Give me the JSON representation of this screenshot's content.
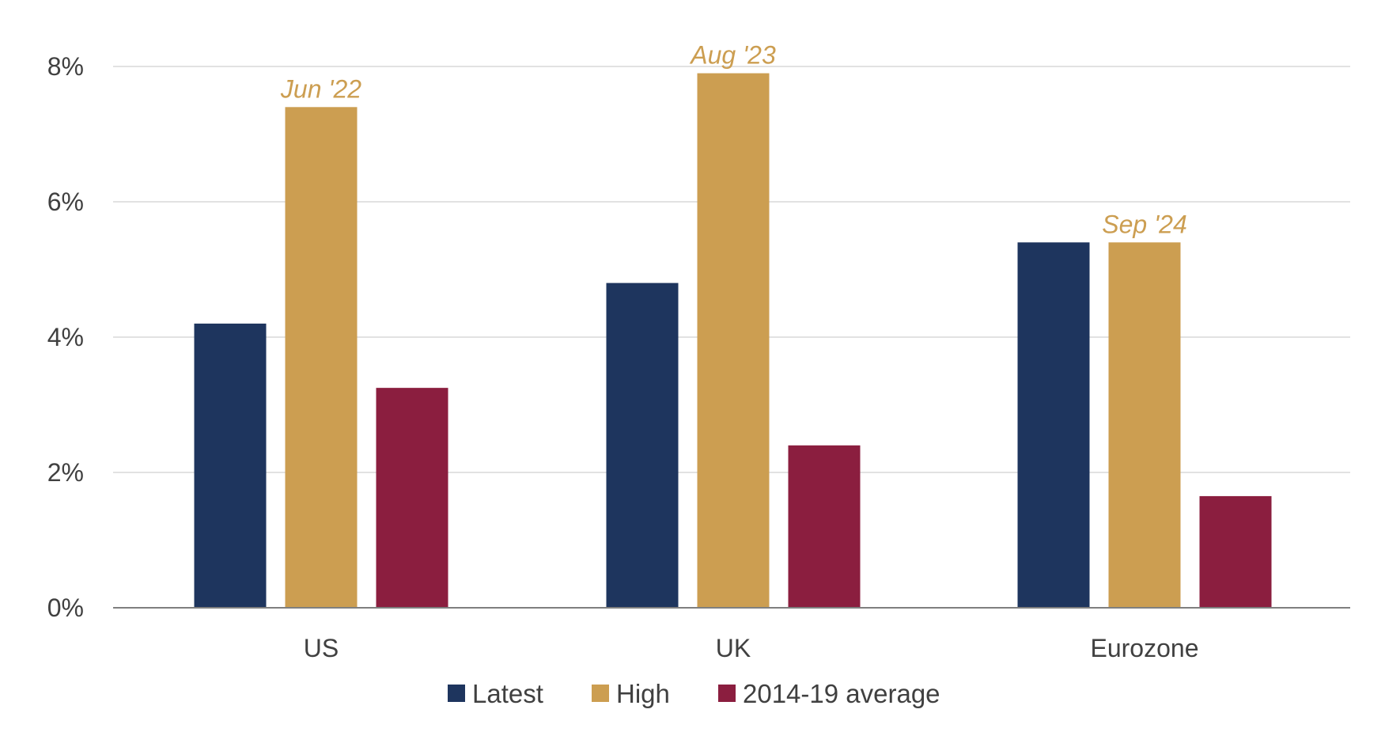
{
  "chart_data": {
    "type": "bar",
    "categories": [
      "US",
      "UK",
      "Eurozone"
    ],
    "series": [
      {
        "name": "Latest",
        "color": "#1e355e",
        "values": [
          4.2,
          4.8,
          5.4
        ]
      },
      {
        "name": "High",
        "color": "#cc9e51",
        "values": [
          7.4,
          7.9,
          5.4
        ]
      },
      {
        "name": "2014-19 average",
        "color": "#8b1e3f",
        "values": [
          3.25,
          2.4,
          1.65
        ]
      }
    ],
    "annotations": [
      {
        "category": "US",
        "series": "High",
        "text": "Jun '22"
      },
      {
        "category": "UK",
        "series": "High",
        "text": "Aug '23"
      },
      {
        "category": "Eurozone",
        "series": "High",
        "text": "Sep '24"
      }
    ],
    "yticks": [
      0,
      2,
      4,
      6,
      8
    ],
    "ytick_labels": [
      "0%",
      "2%",
      "4%",
      "6%",
      "8%"
    ],
    "ylim": [
      0,
      8
    ],
    "grid": true,
    "legend_position": "bottom-center",
    "title": "",
    "xlabel": "",
    "ylabel": ""
  }
}
